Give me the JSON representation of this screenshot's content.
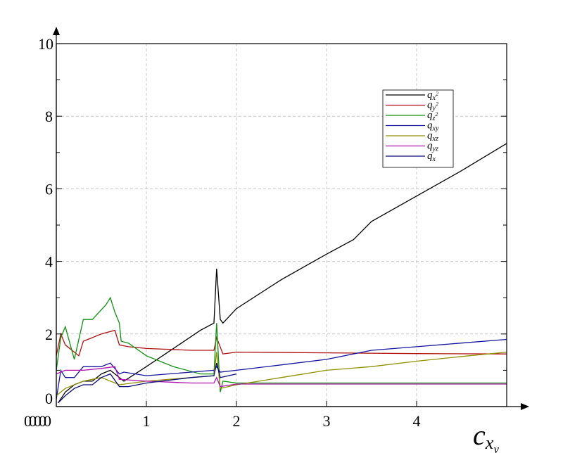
{
  "chart_data": {
    "type": "line",
    "title": "",
    "xlabel": "c",
    "xlabel_sub": "x",
    "xlabel_subsub": "y",
    "ylabel": "",
    "xlim": [
      0,
      5
    ],
    "ylim": [
      0,
      10
    ],
    "x_ticks": [
      "1",
      "2",
      "3",
      "4"
    ],
    "x_origin_labels": [
      "0",
      "0",
      "0",
      "0",
      "0"
    ],
    "y_ticks": [
      "0",
      "2",
      "4",
      "6",
      "8",
      "10"
    ],
    "grid": true,
    "legend_position": "top-right",
    "series": [
      {
        "name": "q",
        "sub": "x",
        "sup": "2",
        "color": "#000000",
        "points": [
          [
            0.02,
            0.1
          ],
          [
            0.1,
            0.4
          ],
          [
            0.2,
            0.6
          ],
          [
            0.3,
            0.7
          ],
          [
            0.4,
            0.7
          ],
          [
            0.5,
            0.9
          ],
          [
            0.6,
            1.0
          ],
          [
            0.7,
            0.8
          ],
          [
            0.75,
            0.7
          ],
          [
            1.0,
            1.1
          ],
          [
            1.3,
            1.6
          ],
          [
            1.6,
            2.1
          ],
          [
            1.75,
            2.3
          ],
          [
            1.78,
            3.8
          ],
          [
            1.82,
            2.4
          ],
          [
            1.85,
            2.3
          ],
          [
            2.0,
            2.7
          ],
          [
            2.5,
            3.5
          ],
          [
            3.0,
            4.2
          ],
          [
            3.3,
            4.6
          ],
          [
            3.5,
            5.1
          ],
          [
            4.0,
            5.8
          ],
          [
            4.5,
            6.5
          ],
          [
            5.0,
            7.25
          ]
        ]
      },
      {
        "name": "q",
        "sub": "y",
        "sup": "2",
        "color": "#b01010",
        "points": [
          [
            0.0,
            1.4
          ],
          [
            0.05,
            2.0
          ],
          [
            0.1,
            1.7
          ],
          [
            0.25,
            1.4
          ],
          [
            0.3,
            1.8
          ],
          [
            0.5,
            2.0
          ],
          [
            0.65,
            2.1
          ],
          [
            0.7,
            1.7
          ],
          [
            0.8,
            1.65
          ],
          [
            1.0,
            1.6
          ],
          [
            1.5,
            1.55
          ],
          [
            1.75,
            1.55
          ],
          [
            1.78,
            1.9
          ],
          [
            1.85,
            1.45
          ],
          [
            2.0,
            1.5
          ],
          [
            3.0,
            1.48
          ],
          [
            4.0,
            1.46
          ],
          [
            5.0,
            1.45
          ]
        ]
      },
      {
        "name": "q",
        "sub": "z",
        "sup": "2",
        "color": "#109010",
        "points": [
          [
            0.0,
            1.0
          ],
          [
            0.05,
            1.9
          ],
          [
            0.1,
            2.2
          ],
          [
            0.2,
            1.3
          ],
          [
            0.3,
            2.4
          ],
          [
            0.4,
            2.4
          ],
          [
            0.55,
            2.8
          ],
          [
            0.6,
            3.0
          ],
          [
            0.65,
            2.6
          ],
          [
            0.7,
            2.3
          ],
          [
            0.72,
            1.8
          ],
          [
            0.8,
            1.75
          ],
          [
            1.0,
            1.4
          ],
          [
            1.3,
            1.1
          ],
          [
            1.6,
            0.9
          ],
          [
            1.75,
            0.9
          ],
          [
            1.78,
            2.3
          ],
          [
            1.82,
            0.4
          ],
          [
            1.85,
            0.7
          ],
          [
            2.0,
            0.65
          ],
          [
            3.5,
            0.65
          ],
          [
            5.0,
            0.65
          ]
        ]
      },
      {
        "name": "q",
        "sub": "xy",
        "sup": "",
        "color": "#1414a0",
        "points": [
          [
            0.0,
            0.2
          ],
          [
            0.05,
            1.0
          ],
          [
            0.1,
            0.8
          ],
          [
            0.2,
            0.8
          ],
          [
            0.3,
            1.1
          ],
          [
            0.5,
            1.1
          ],
          [
            0.6,
            1.2
          ],
          [
            0.7,
            0.9
          ],
          [
            0.75,
            0.95
          ],
          [
            1.0,
            0.85
          ],
          [
            1.5,
            0.95
          ],
          [
            1.75,
            1.0
          ],
          [
            1.78,
            1.1
          ],
          [
            1.82,
            0.95
          ],
          [
            2.0,
            1.0
          ],
          [
            2.5,
            1.15
          ],
          [
            3.0,
            1.3
          ],
          [
            3.5,
            1.55
          ],
          [
            4.0,
            1.65
          ],
          [
            4.5,
            1.75
          ],
          [
            5.0,
            1.85
          ]
        ]
      },
      {
        "name": "q",
        "sub": "xz",
        "sup": "",
        "color": "#909000",
        "points": [
          [
            0.0,
            0.3
          ],
          [
            0.1,
            0.5
          ],
          [
            0.3,
            0.7
          ],
          [
            0.5,
            0.8
          ],
          [
            0.7,
            0.6
          ],
          [
            1.0,
            0.7
          ],
          [
            1.5,
            0.8
          ],
          [
            1.75,
            0.85
          ],
          [
            1.78,
            1.5
          ],
          [
            1.82,
            0.5
          ],
          [
            2.0,
            0.6
          ],
          [
            2.5,
            0.8
          ],
          [
            3.0,
            1.0
          ],
          [
            3.5,
            1.1
          ],
          [
            4.0,
            1.25
          ],
          [
            4.5,
            1.38
          ],
          [
            5.0,
            1.5
          ]
        ]
      },
      {
        "name": "q",
        "sub": "yz",
        "sup": "",
        "color": "#b010b0",
        "points": [
          [
            0.0,
            0.9
          ],
          [
            0.1,
            1.0
          ],
          [
            0.3,
            1.0
          ],
          [
            0.5,
            1.05
          ],
          [
            0.65,
            1.1
          ],
          [
            0.7,
            0.75
          ],
          [
            1.0,
            0.7
          ],
          [
            1.5,
            0.65
          ],
          [
            1.75,
            0.65
          ],
          [
            1.78,
            0.8
          ],
          [
            1.82,
            0.55
          ],
          [
            2.0,
            0.62
          ],
          [
            3.5,
            0.62
          ],
          [
            5.0,
            0.62
          ]
        ]
      },
      {
        "name": "q",
        "sub": "x",
        "sup": "",
        "color": "#0a0a7a",
        "points": [
          [
            0.02,
            0.1
          ],
          [
            0.1,
            0.3
          ],
          [
            0.2,
            0.5
          ],
          [
            0.3,
            0.6
          ],
          [
            0.4,
            0.6
          ],
          [
            0.5,
            0.8
          ],
          [
            0.6,
            0.9
          ],
          [
            0.7,
            0.55
          ],
          [
            0.8,
            0.55
          ],
          [
            1.0,
            0.65
          ],
          [
            1.5,
            0.8
          ],
          [
            1.75,
            0.85
          ],
          [
            1.78,
            1.2
          ],
          [
            1.82,
            0.8
          ],
          [
            2.0,
            0.9
          ]
        ]
      }
    ]
  }
}
